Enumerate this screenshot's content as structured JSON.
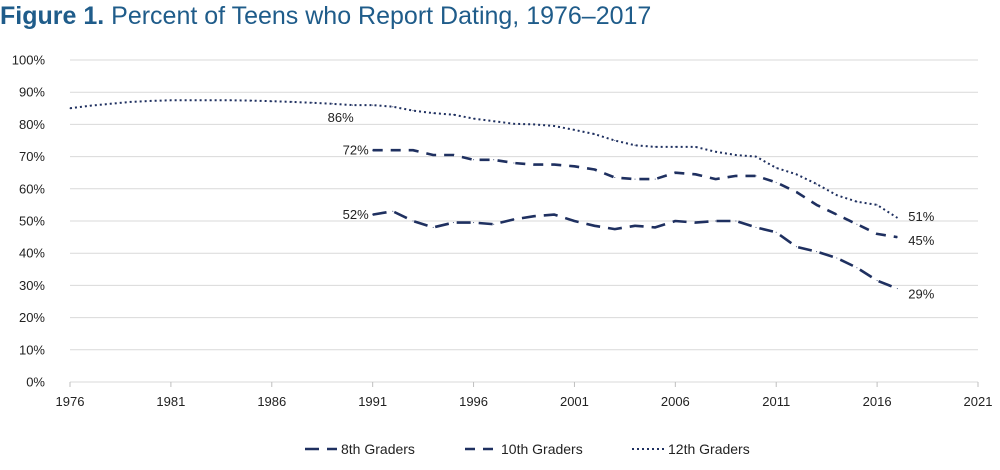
{
  "figure": {
    "label": "Figure 1.",
    "title": "Percent of Teens who Report Dating, 1976–2017"
  },
  "chart_data": {
    "type": "line",
    "title": "Percent of Teens who Report Dating, 1976–2017",
    "xlabel": "",
    "ylabel": "",
    "xlim": [
      1976,
      2021
    ],
    "ylim": [
      0,
      100
    ],
    "x_ticks": [
      "1976",
      "1981",
      "1986",
      "1991",
      "1996",
      "2001",
      "2006",
      "2011",
      "2016",
      "2021"
    ],
    "y_ticks": [
      "0%",
      "10%",
      "20%",
      "30%",
      "40%",
      "50%",
      "60%",
      "70%",
      "80%",
      "90%",
      "100%"
    ],
    "grid": true,
    "legend_position": "bottom",
    "colors": {
      "line": "#1f3060",
      "grid": "#d9d9d9",
      "title": "#1f5c8a"
    },
    "series": [
      {
        "name": "8th Graders",
        "style": "long-dash",
        "x": [
          1991,
          1992,
          1993,
          1994,
          1995,
          1996,
          1997,
          1998,
          1999,
          2000,
          2001,
          2002,
          2003,
          2004,
          2005,
          2006,
          2007,
          2008,
          2009,
          2010,
          2011,
          2012,
          2013,
          2014,
          2015,
          2016,
          2017
        ],
        "values": [
          52,
          53,
          50,
          48,
          49.5,
          49.5,
          49,
          50.5,
          51.5,
          52,
          50,
          48.5,
          47.5,
          48.5,
          48,
          50,
          49.5,
          50,
          50,
          48,
          46.5,
          42,
          40.5,
          38.5,
          35.5,
          31.5,
          29
        ]
      },
      {
        "name": "10th Graders",
        "style": "dash",
        "x": [
          1991,
          1992,
          1993,
          1994,
          1995,
          1996,
          1997,
          1998,
          1999,
          2000,
          2001,
          2002,
          2003,
          2004,
          2005,
          2006,
          2007,
          2008,
          2009,
          2010,
          2011,
          2012,
          2013,
          2014,
          2015,
          2016,
          2017
        ],
        "values": [
          72,
          72,
          72,
          70.5,
          70.5,
          69,
          69,
          68,
          67.5,
          67.5,
          67,
          66,
          63.5,
          63,
          63,
          65,
          64.5,
          63,
          64,
          64,
          62,
          59,
          55,
          52,
          49,
          46,
          45
        ]
      },
      {
        "name": "12th Graders",
        "style": "dot",
        "x": [
          1976,
          1977,
          1978,
          1979,
          1980,
          1981,
          1982,
          1983,
          1984,
          1985,
          1986,
          1987,
          1988,
          1989,
          1990,
          1991,
          1992,
          1993,
          1994,
          1995,
          1996,
          1997,
          1998,
          1999,
          2000,
          2001,
          2002,
          2003,
          2004,
          2005,
          2006,
          2007,
          2008,
          2009,
          2010,
          2011,
          2012,
          2013,
          2014,
          2015,
          2016,
          2017
        ],
        "values": [
          85,
          85.8,
          86.4,
          87,
          87.3,
          87.5,
          87.5,
          87.5,
          87.5,
          87.4,
          87.2,
          87,
          86.7,
          86.4,
          86,
          86,
          85.5,
          84.3,
          83.5,
          83,
          81.8,
          81,
          80.2,
          80,
          79.5,
          78.3,
          77,
          75,
          73.5,
          73,
          73,
          73,
          71.5,
          70.5,
          70,
          66.5,
          64.5,
          61.5,
          58,
          56,
          55,
          51
        ]
      }
    ],
    "annotations": [
      {
        "series": "12th Graders",
        "x": 1991,
        "text": "86%"
      },
      {
        "series": "10th Graders",
        "x": 1991,
        "text": "72%"
      },
      {
        "series": "8th Graders",
        "x": 1991,
        "text": "52%"
      },
      {
        "series": "12th Graders",
        "x": 2017,
        "text": "51%"
      },
      {
        "series": "10th Graders",
        "x": 2017,
        "text": "45%"
      },
      {
        "series": "8th Graders",
        "x": 2017,
        "text": "29%"
      }
    ]
  }
}
